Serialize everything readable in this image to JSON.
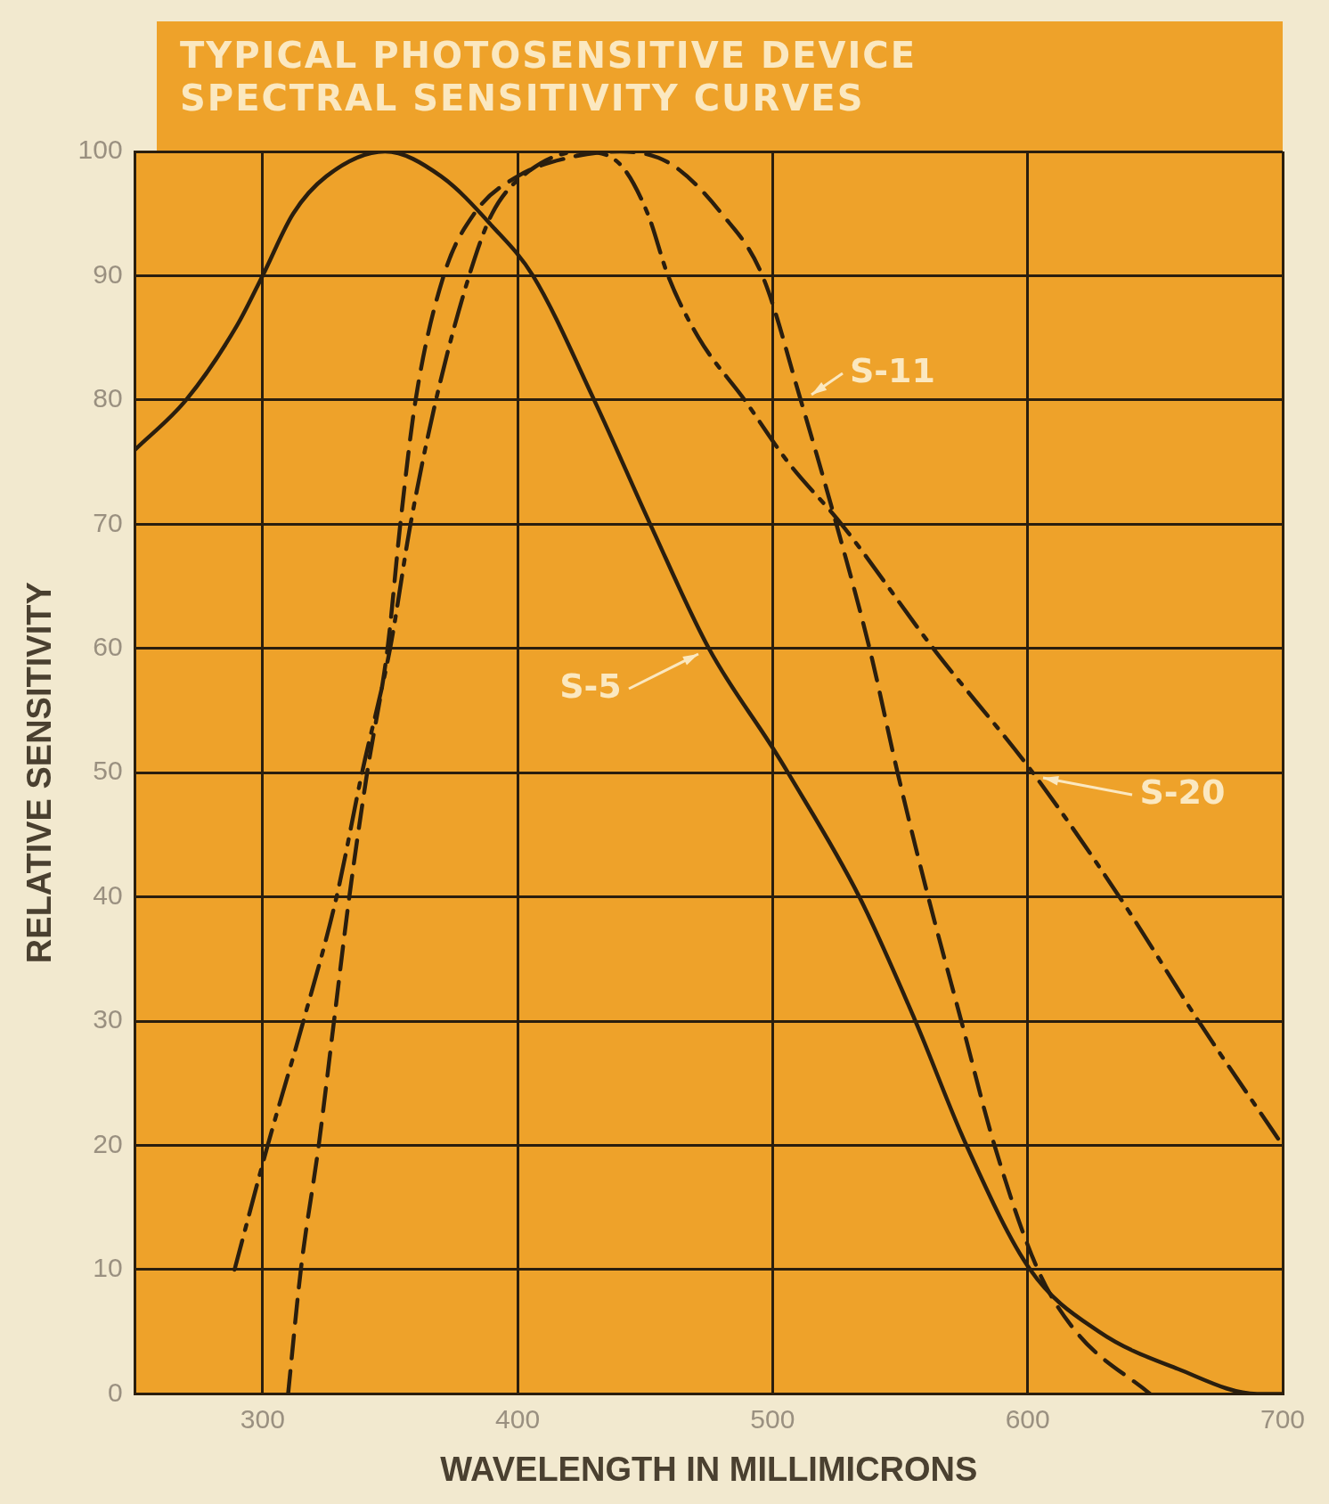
{
  "chart_data": {
    "type": "line",
    "title": "TYPICAL PHOTOSENSITIVE DEVICE SPECTRAL SENSITIVITY CURVES",
    "xlabel": "WAVELENGTH IN MILLIMICRONS",
    "ylabel": "RELATIVE SENSITIVITY",
    "xlim": [
      250,
      700
    ],
    "xticks": [
      300,
      400,
      500,
      600,
      700
    ],
    "ylim": [
      0,
      100
    ],
    "yticks": [
      0,
      10,
      20,
      30,
      40,
      50,
      60,
      70,
      80,
      90,
      100
    ],
    "grid": true,
    "marker": "none",
    "legend": false,
    "series": [
      {
        "name": "S-5",
        "color": "#2a1e0e",
        "line_style": "solid",
        "x": [
          250,
          270,
          290,
          300,
          312,
          325,
          348,
          370,
          390,
          406,
          430,
          452,
          475,
          500,
          506,
          534,
          556,
          576,
          601,
          628,
          659,
          690,
          700
        ],
        "values": [
          76,
          80,
          86,
          90,
          95,
          98,
          100,
          98,
          94,
          90,
          80,
          70,
          60,
          52,
          50,
          40,
          30,
          20,
          10,
          5,
          2,
          0,
          0
        ]
      },
      {
        "name": "S-11",
        "color": "#2a1e0e",
        "line_style": "dashed",
        "x": [
          310,
          315,
          322,
          328,
          334,
          341,
          349,
          354,
          360,
          371,
          383,
          400,
          420,
          440,
          460,
          480,
          496,
          511,
          525,
          538,
          549,
          561,
          574,
          587,
          604,
          619,
          648
        ],
        "values": [
          0,
          10,
          20,
          30,
          40,
          50,
          60,
          70,
          80,
          90,
          95,
          98,
          99.5,
          100,
          99,
          95,
          90,
          80,
          70,
          60,
          50,
          40,
          30,
          20,
          10,
          5,
          0
        ]
      },
      {
        "name": "S-20",
        "color": "#2a1e0e",
        "line_style": "dashdot",
        "x": [
          289,
          302,
          316,
          329,
          339,
          350,
          358,
          368,
          381,
          390,
          405,
          425,
          440,
          451,
          459,
          471,
          489,
          506,
          527,
          563,
          602,
          636,
          667,
          700
        ],
        "values": [
          10,
          20,
          30,
          40,
          50,
          60,
          70,
          80,
          90,
          95,
          98.5,
          100,
          99,
          95,
          90,
          85,
          80,
          75,
          70,
          60,
          50,
          40,
          30,
          20
        ]
      }
    ]
  }
}
